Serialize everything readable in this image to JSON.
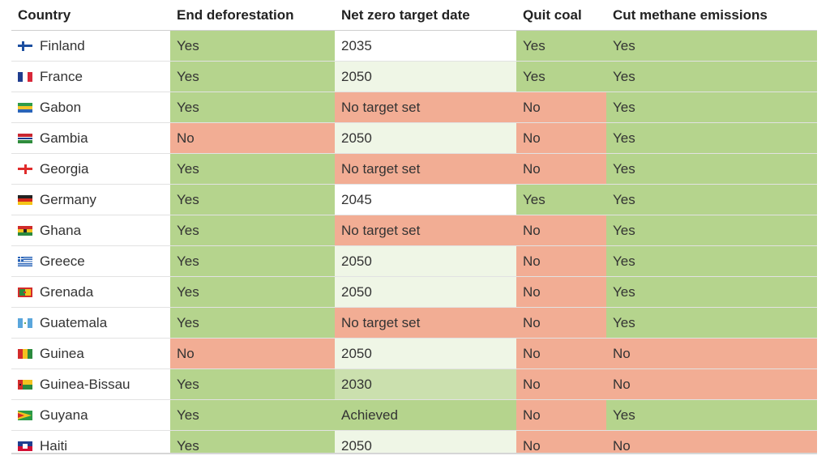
{
  "colors": {
    "yes": "#b5d48d",
    "no": "#f2ad94",
    "achieved": "#b5d48d",
    "target_2030": "#cbe0ae",
    "target_2035": "#ffffff",
    "target_2045": "#ffffff",
    "target_2050": "#eff6e6",
    "no_target": "#f2ad94"
  },
  "headers": [
    "Country",
    "End deforestation",
    "Net zero target date",
    "Quit coal",
    "Cut methane emissions"
  ],
  "rows": [
    {
      "country": "Finland",
      "flag": "finland-flag-icon",
      "deforestation": "Yes",
      "net_zero": "2035",
      "coal": "Yes",
      "methane": "Yes"
    },
    {
      "country": "France",
      "flag": "france-flag-icon",
      "deforestation": "Yes",
      "net_zero": "2050",
      "coal": "Yes",
      "methane": "Yes"
    },
    {
      "country": "Gabon",
      "flag": "gabon-flag-icon",
      "deforestation": "Yes",
      "net_zero": "No target set",
      "coal": "No",
      "methane": "Yes"
    },
    {
      "country": "Gambia",
      "flag": "gambia-flag-icon",
      "deforestation": "No",
      "net_zero": "2050",
      "coal": "No",
      "methane": "Yes"
    },
    {
      "country": "Georgia",
      "flag": "georgia-flag-icon",
      "deforestation": "Yes",
      "net_zero": "No target set",
      "coal": "No",
      "methane": "Yes"
    },
    {
      "country": "Germany",
      "flag": "germany-flag-icon",
      "deforestation": "Yes",
      "net_zero": "2045",
      "coal": "Yes",
      "methane": "Yes"
    },
    {
      "country": "Ghana",
      "flag": "ghana-flag-icon",
      "deforestation": "Yes",
      "net_zero": "No target set",
      "coal": "No",
      "methane": "Yes"
    },
    {
      "country": "Greece",
      "flag": "greece-flag-icon",
      "deforestation": "Yes",
      "net_zero": "2050",
      "coal": "No",
      "methane": "Yes"
    },
    {
      "country": "Grenada",
      "flag": "grenada-flag-icon",
      "deforestation": "Yes",
      "net_zero": "2050",
      "coal": "No",
      "methane": "Yes"
    },
    {
      "country": "Guatemala",
      "flag": "guatemala-flag-icon",
      "deforestation": "Yes",
      "net_zero": "No target set",
      "coal": "No",
      "methane": "Yes"
    },
    {
      "country": "Guinea",
      "flag": "guinea-flag-icon",
      "deforestation": "No",
      "net_zero": "2050",
      "coal": "No",
      "methane": "No"
    },
    {
      "country": "Guinea-Bissau",
      "flag": "guinea-bissau-flag-icon",
      "deforestation": "Yes",
      "net_zero": "2030",
      "coal": "No",
      "methane": "No"
    },
    {
      "country": "Guyana",
      "flag": "guyana-flag-icon",
      "deforestation": "Yes",
      "net_zero": "Achieved",
      "coal": "No",
      "methane": "Yes"
    },
    {
      "country": "Haiti",
      "flag": "haiti-flag-icon",
      "deforestation": "Yes",
      "net_zero": "2050",
      "coal": "No",
      "methane": "No"
    }
  ]
}
